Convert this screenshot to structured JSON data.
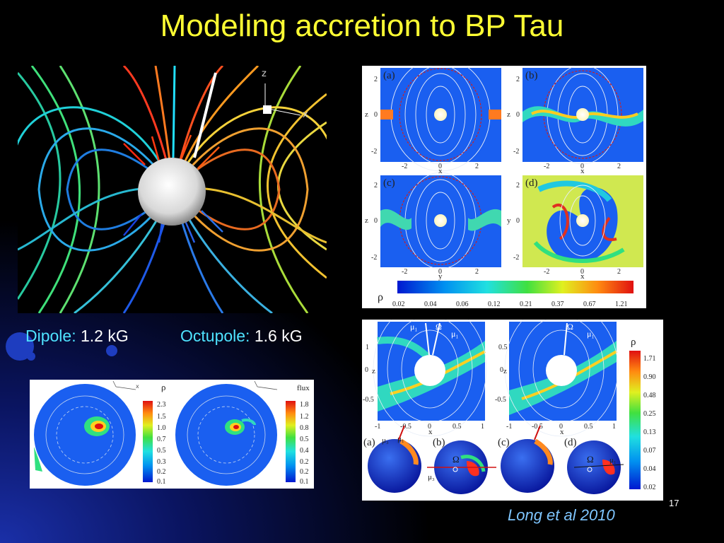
{
  "slide": {
    "title": "Modeling accretion to BP Tau",
    "page_number": "17",
    "credit": "Long et al  2010"
  },
  "captions": {
    "dipole_label": "Dipole:",
    "dipole_value": "1.2 kG",
    "octupole_label": "Octupole:",
    "octupole_value": "1.6 kG"
  },
  "fieldlines_figure": {
    "axis_z": "z",
    "axis_x": "x"
  },
  "sim_panels": {
    "labels": [
      "(a)",
      "(b)",
      "(c)",
      "(d)"
    ],
    "yticks": [
      "2",
      "0",
      "-2"
    ],
    "xticks": [
      "-2",
      "0",
      "2"
    ],
    "ylabels": [
      "z",
      "z",
      "z",
      "y"
    ],
    "xlabels": [
      "x",
      "x",
      "y",
      "x"
    ],
    "colorbar_symbol": "ρ",
    "colorbar_ticks": [
      "0.02",
      "0.04",
      "0.06",
      "0.12",
      "0.21",
      "0.37",
      "0.67",
      "1.21"
    ]
  },
  "disk_figure": {
    "top_labels": [
      "μ₁",
      "Ω",
      "μ₁"
    ],
    "yticks": [
      "1",
      "0.5",
      "0",
      "-0.5"
    ],
    "xticks": [
      "-1",
      "-0.5",
      "0",
      "0.5",
      "1"
    ],
    "ylabel": "z",
    "xlabel": "x",
    "colorbar_symbol": "ρ",
    "colorbar_ticks": [
      "1.71",
      "0.90",
      "0.48",
      "0.25",
      "0.13",
      "0.07",
      "0.04",
      "0.02"
    ],
    "sphere_labels": [
      "(a)",
      "(b)",
      "(c)",
      "(d)"
    ],
    "omega": "Ω",
    "mu1": "μ₁",
    "mu3": "μ₃"
  },
  "spots_figure": {
    "left_bar_symbol": "ρ",
    "left_ticks": [
      "2.3",
      "1.5",
      "1.0",
      "0.7",
      "0.5",
      "0.3",
      "0.2",
      "0.1"
    ],
    "right_bar_symbol": "flux",
    "right_ticks": [
      "1.8",
      "1.2",
      "0.8",
      "0.5",
      "0.4",
      "0.2",
      "0.2",
      "0.1"
    ],
    "axis_x": "x"
  },
  "colors": {
    "title": "#ffff33",
    "caption_label": "#4fe3ff",
    "credit": "#7fc6ff"
  }
}
